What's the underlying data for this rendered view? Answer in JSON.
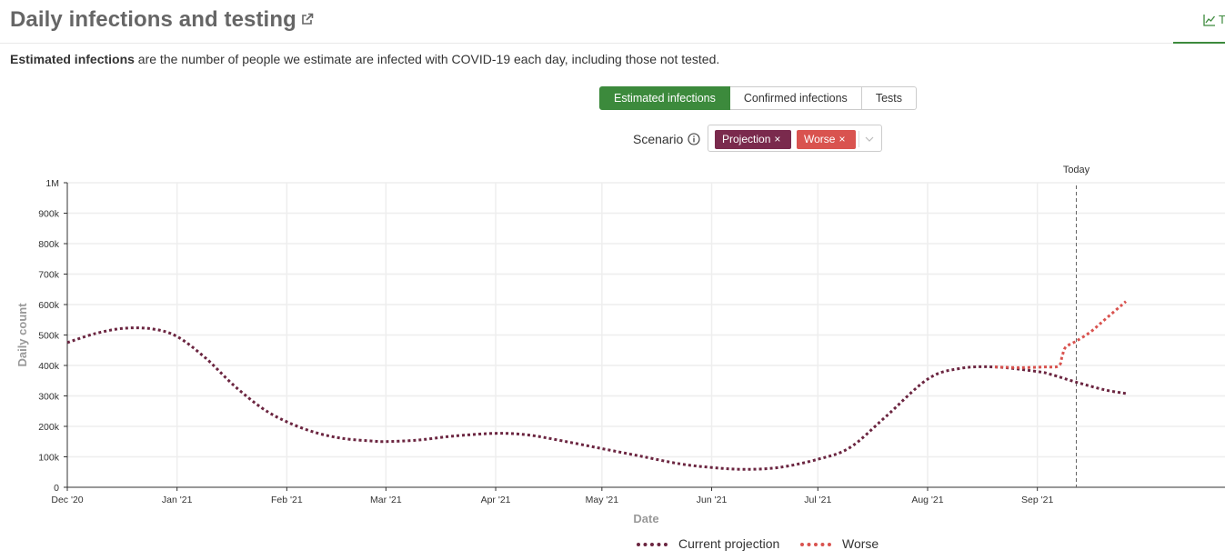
{
  "header": {
    "title": "Daily infections and testing",
    "tab_label": "T"
  },
  "description": {
    "bold": "Estimated infections",
    "rest": " are the number of people we estimate are infected with COVID-19 each day, including those not tested."
  },
  "toggle": {
    "options": [
      "Estimated infections",
      "Confirmed infections",
      "Tests"
    ],
    "active": "Estimated infections"
  },
  "scenario": {
    "label": "Scenario",
    "chips": [
      "Projection",
      "Worse"
    ]
  },
  "colors": {
    "accent": "#3c8a3c",
    "projection": "#6b2540",
    "worse": "#d9534f",
    "chip_projection": "#7a2a4d"
  },
  "icons": [
    "external-link-icon",
    "line-chart-icon",
    "info-icon",
    "chip-close-icon",
    "chevron-down-icon"
  ],
  "chart_data": {
    "type": "line",
    "xlabel": "Date",
    "ylabel": "Daily count",
    "ylim": [
      0,
      1000000
    ],
    "yticks": [
      0,
      100000,
      200000,
      300000,
      400000,
      500000,
      600000,
      700000,
      800000,
      900000,
      1000000
    ],
    "ytick_labels": [
      "0",
      "100k",
      "200k",
      "300k",
      "400k",
      "500k",
      "600k",
      "700k",
      "800k",
      "900k",
      "1M"
    ],
    "xlim": [
      "2020-12-01",
      "2021-10-24"
    ],
    "xticks": [
      "2020-12-01",
      "2021-01-01",
      "2021-02-01",
      "2021-03-01",
      "2021-04-01",
      "2021-05-01",
      "2021-06-01",
      "2021-07-01",
      "2021-08-01",
      "2021-09-01"
    ],
    "xtick_labels": [
      "Dec '20",
      "Jan '21",
      "Feb '21",
      "Mar '21",
      "Apr '21",
      "May '21",
      "Jun '21",
      "Jul '21",
      "Aug '21",
      "Sep '21"
    ],
    "today": "2021-09-12",
    "today_label": "Today",
    "grid": true,
    "legend_position": "bottom",
    "series": [
      {
        "name": "Current projection",
        "style": "dotted",
        "x": [
          "2020-12-01",
          "2020-12-09",
          "2020-12-17",
          "2020-12-25",
          "2021-01-01",
          "2021-01-09",
          "2021-01-17",
          "2021-01-25",
          "2021-02-01",
          "2021-02-09",
          "2021-02-17",
          "2021-02-25",
          "2021-03-01",
          "2021-03-10",
          "2021-03-20",
          "2021-04-01",
          "2021-04-10",
          "2021-04-20",
          "2021-05-01",
          "2021-05-12",
          "2021-05-23",
          "2021-06-01",
          "2021-06-10",
          "2021-06-20",
          "2021-07-01",
          "2021-07-10",
          "2021-07-20",
          "2021-08-01",
          "2021-08-10",
          "2021-08-20",
          "2021-09-01",
          "2021-09-05",
          "2021-09-12",
          "2021-09-20",
          "2021-09-26"
        ],
        "y": [
          475000,
          505000,
          522000,
          520000,
          495000,
          425000,
          335000,
          260000,
          215000,
          180000,
          160000,
          152000,
          150000,
          155000,
          168000,
          177000,
          172000,
          152000,
          127000,
          102000,
          77000,
          65000,
          59000,
          65000,
          92000,
          130000,
          230000,
          355000,
          390000,
          395000,
          380000,
          370000,
          345000,
          320000,
          308000
        ]
      },
      {
        "name": "Worse",
        "style": "dotted",
        "x": [
          "2021-08-20",
          "2021-08-27",
          "2021-09-03",
          "2021-09-07",
          "2021-09-08",
          "2021-09-09",
          "2021-09-12",
          "2021-09-16",
          "2021-09-20",
          "2021-09-26"
        ],
        "y": [
          395000,
          393000,
          395000,
          398000,
          430000,
          460000,
          480000,
          510000,
          550000,
          610000
        ]
      }
    ]
  }
}
